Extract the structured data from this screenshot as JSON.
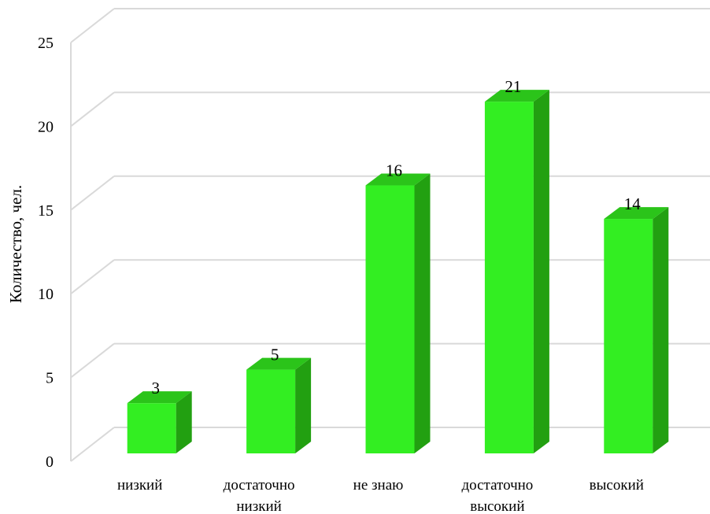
{
  "chart_data": {
    "type": "bar",
    "style": "3d-column",
    "categories": [
      "низкий",
      "достаточно низкий",
      "не знаю",
      "достаточно высокий",
      "высокий"
    ],
    "category_label_lines": [
      [
        "низкий"
      ],
      [
        "достаточно",
        "низкий"
      ],
      [
        "не знаю"
      ],
      [
        "достаточно",
        "высокий"
      ],
      [
        "высокий"
      ]
    ],
    "values": [
      3,
      5,
      16,
      21,
      14
    ],
    "data_labels": [
      "3",
      "5",
      "16",
      "21",
      "14"
    ],
    "title": "",
    "xlabel": "",
    "ylabel": "Количество, чел.",
    "ylim": [
      0,
      25
    ],
    "yticks": [
      0,
      5,
      10,
      15,
      20,
      25
    ],
    "ytick_labels": [
      "0",
      "5",
      "10",
      "15",
      "20",
      "25"
    ],
    "grid": true,
    "legend": "none",
    "colors": {
      "bar_front": "#33ee22",
      "bar_side": "#22a011",
      "bar_top": "#2bc41a",
      "gridline": "#d9d9d9"
    }
  }
}
